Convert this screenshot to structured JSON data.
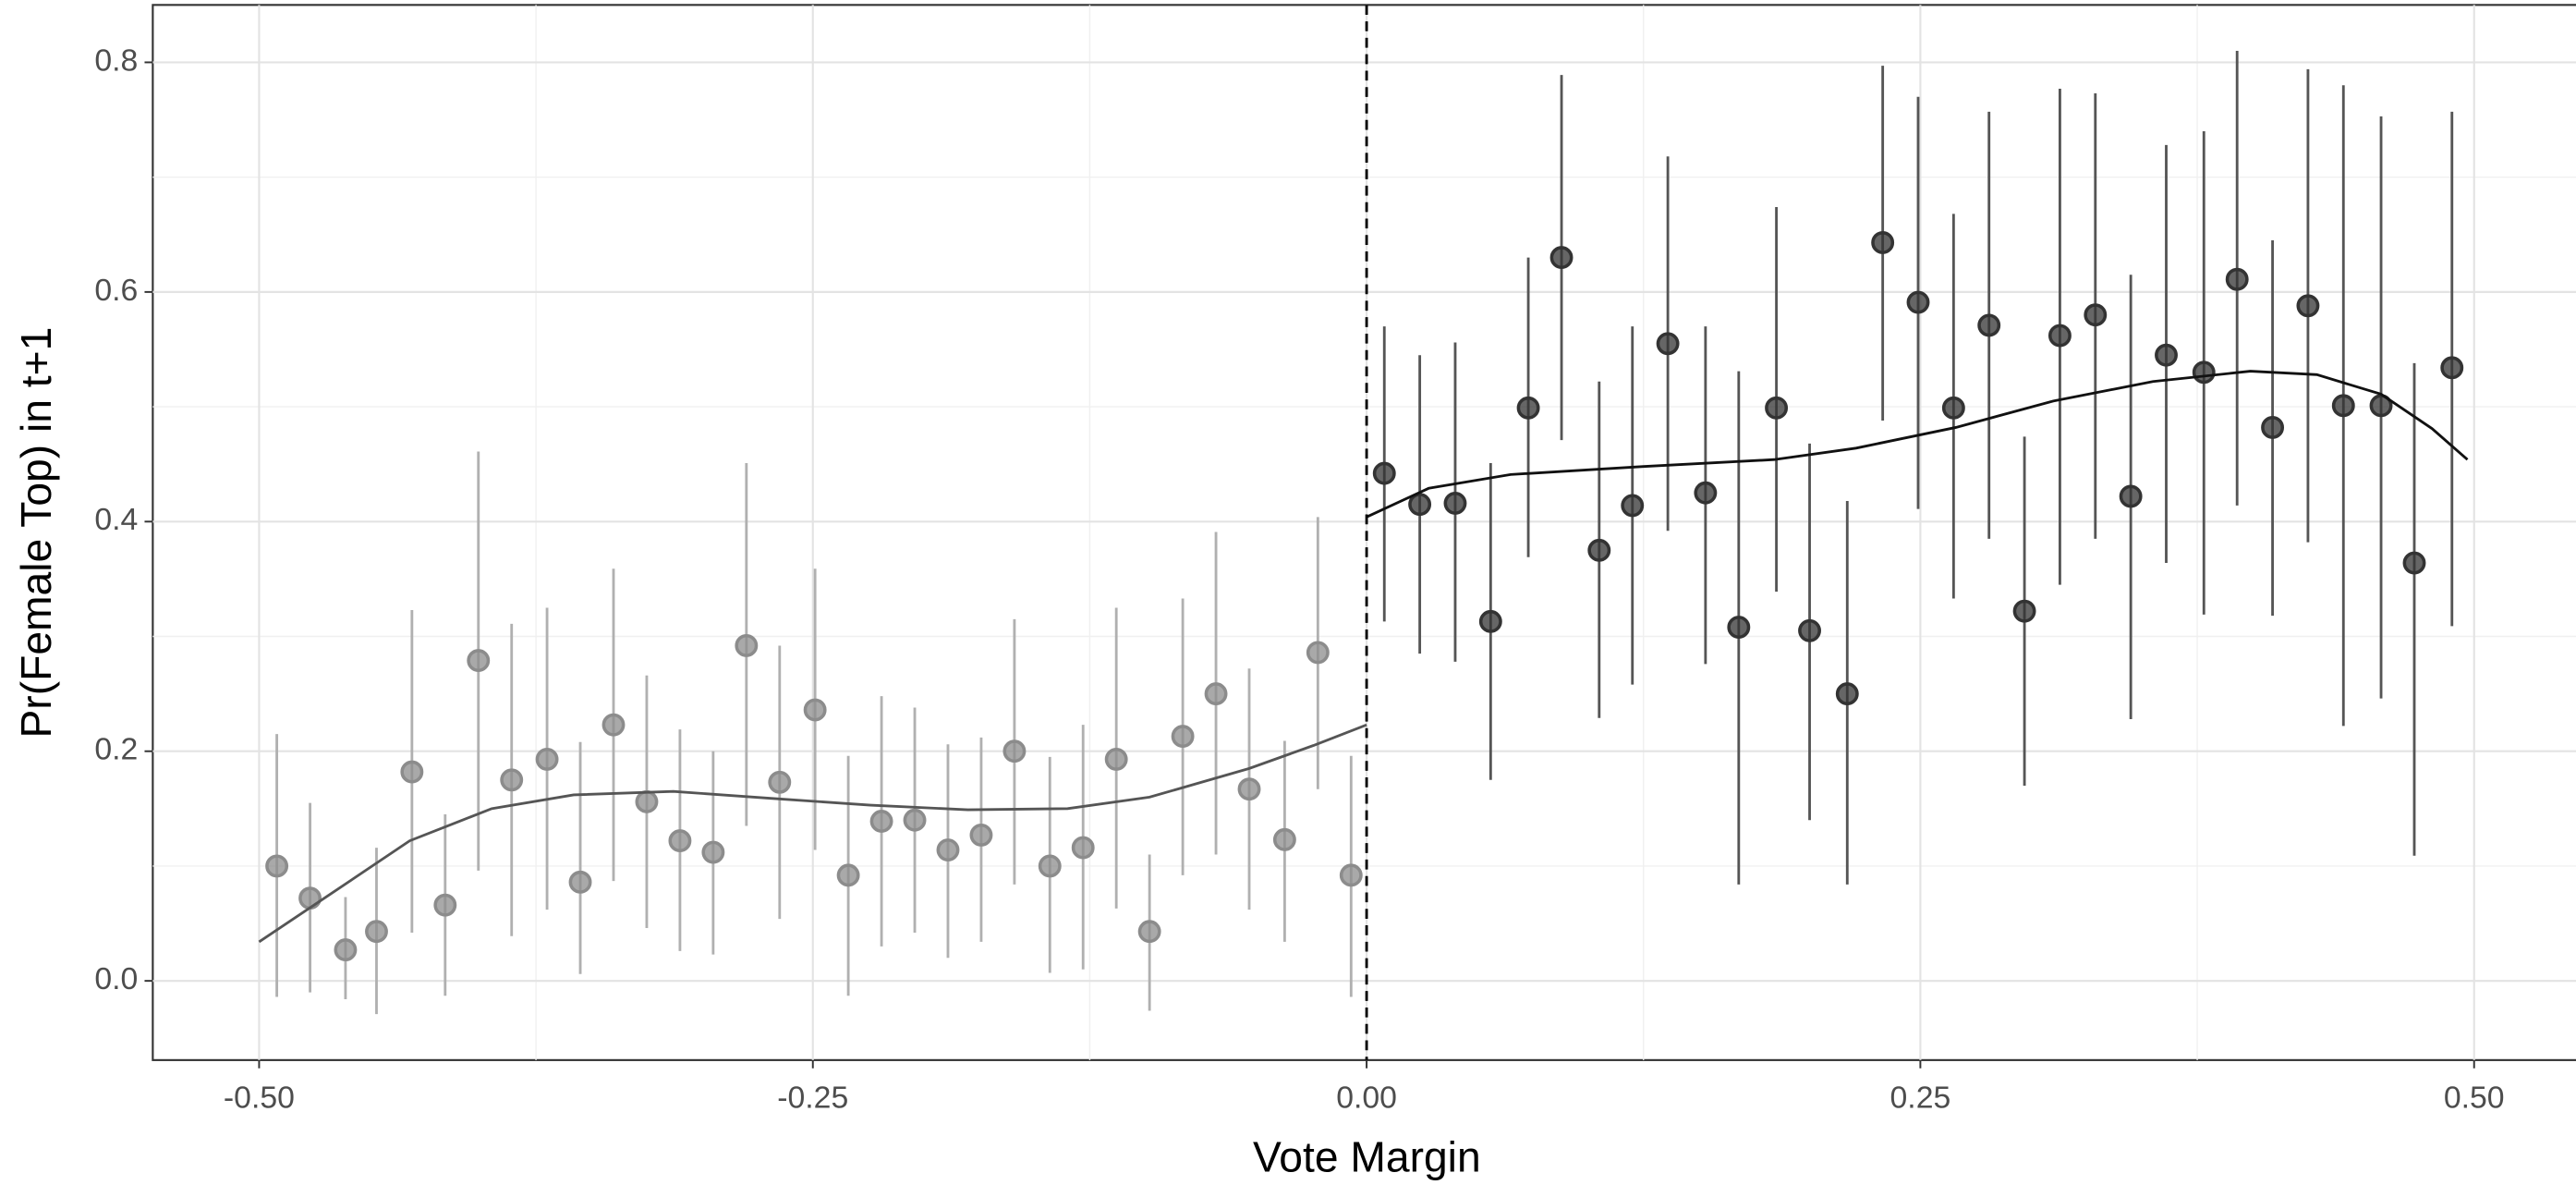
{
  "chart_data": {
    "type": "scatter",
    "x_label": "Vote Margin",
    "y_label": "Pr(Female Top) in t+1",
    "xlim": [
      -0.548,
      0.546
    ],
    "ylim": [
      -0.069,
      0.85
    ],
    "xticks": [
      {
        "value": -0.5,
        "label": "-0.50"
      },
      {
        "value": -0.25,
        "label": "-0.25"
      },
      {
        "value": 0,
        "label": "0.00"
      },
      {
        "value": 0.25,
        "label": "0.25"
      },
      {
        "value": 0.5,
        "label": "0.50"
      }
    ],
    "yticks": [
      {
        "value": 0,
        "label": "0.0"
      },
      0.2,
      0.4,
      0.6,
      0.8
    ],
    "x_minor_grid": [
      -0.375,
      -0.125,
      0.125,
      0.375
    ],
    "y_minor_grid": [
      0.1,
      0.3,
      0.5,
      0.7
    ],
    "grid": true,
    "cutoff": 0,
    "series": [
      {
        "color": "#8c8c8c",
        "errorbar_color": "#b0b0b0",
        "x": [
          -0.492,
          -0.477,
          -0.461,
          -0.447,
          -0.431,
          -0.416,
          -0.401,
          -0.386,
          -0.37,
          -0.355,
          -0.34,
          -0.325,
          -0.31,
          -0.295,
          -0.28,
          -0.265,
          -0.249,
          -0.234,
          -0.219,
          -0.204,
          -0.189,
          -0.174,
          -0.159,
          -0.143,
          -0.128,
          -0.113,
          -0.098,
          -0.083,
          -0.068,
          -0.053,
          -0.037,
          -0.022,
          -0.007
        ],
        "values": [
          0.1,
          0.072,
          0.027,
          0.043,
          0.182,
          0.066,
          0.279,
          0.175,
          0.193,
          0.086,
          0.223,
          0.156,
          0.122,
          0.112,
          0.292,
          0.173,
          0.236,
          0.092,
          0.139,
          0.14,
          0.114,
          0.127,
          0.2,
          0.1,
          0.116,
          0.193,
          0.043,
          0.213,
          0.25,
          0.167,
          0.123,
          0.286,
          0.092
        ],
        "lower": [
          -0.014,
          -0.01,
          -0.016,
          -0.029,
          0.042,
          -0.013,
          0.096,
          0.039,
          0.062,
          0.006,
          0.087,
          0.046,
          0.026,
          0.023,
          0.135,
          0.054,
          0.114,
          -0.013,
          0.03,
          0.042,
          0.02,
          0.034,
          0.084,
          0.007,
          0.01,
          0.063,
          -0.026,
          0.092,
          0.11,
          0.062,
          0.034,
          0.167,
          -0.014
        ],
        "upper": [
          0.215,
          0.155,
          0.073,
          0.116,
          0.323,
          0.145,
          0.461,
          0.311,
          0.325,
          0.208,
          0.359,
          0.266,
          0.219,
          0.2,
          0.451,
          0.292,
          0.359,
          0.196,
          0.248,
          0.238,
          0.206,
          0.212,
          0.315,
          0.195,
          0.223,
          0.325,
          0.11,
          0.333,
          0.391,
          0.272,
          0.209,
          0.404,
          0.196
        ]
      },
      {
        "color": "#333333",
        "errorbar_color": "#555555",
        "x": [
          0.008,
          0.024,
          0.04,
          0.056,
          0.073,
          0.088,
          0.105,
          0.12,
          0.136,
          0.153,
          0.168,
          0.185,
          0.2,
          0.217,
          0.233,
          0.249,
          0.265,
          0.281,
          0.297,
          0.313,
          0.329,
          0.345,
          0.361,
          0.378,
          0.393,
          0.409,
          0.425,
          0.441,
          0.458,
          0.473,
          0.49
        ],
        "values": [
          0.442,
          0.415,
          0.416,
          0.313,
          0.499,
          0.63,
          0.375,
          0.414,
          0.555,
          0.425,
          0.308,
          0.499,
          0.305,
          0.25,
          0.643,
          0.591,
          0.499,
          0.571,
          0.322,
          0.562,
          0.58,
          0.422,
          0.545,
          0.53,
          0.611,
          0.482,
          0.588,
          0.501,
          0.501,
          0.364,
          0.534
        ],
        "lower": [
          0.313,
          0.285,
          0.278,
          0.175,
          0.369,
          0.471,
          0.229,
          0.258,
          0.392,
          0.276,
          0.084,
          0.339,
          0.14,
          0.084,
          0.488,
          0.411,
          0.333,
          0.385,
          0.17,
          0.345,
          0.385,
          0.228,
          0.364,
          0.319,
          0.414,
          0.318,
          0.382,
          0.222,
          0.246,
          0.109,
          0.309
        ],
        "upper": [
          0.57,
          0.545,
          0.556,
          0.451,
          0.63,
          0.789,
          0.522,
          0.57,
          0.718,
          0.57,
          0.531,
          0.674,
          0.468,
          0.418,
          0.797,
          0.77,
          0.668,
          0.757,
          0.474,
          0.777,
          0.773,
          0.615,
          0.728,
          0.74,
          0.81,
          0.645,
          0.794,
          0.78,
          0.753,
          0.538,
          0.757
        ]
      }
    ],
    "fits": [
      {
        "color": "#555555",
        "x": [
          -0.5,
          -0.469,
          -0.432,
          -0.395,
          -0.358,
          -0.313,
          -0.269,
          -0.224,
          -0.18,
          -0.135,
          -0.098,
          -0.053,
          -0.024,
          0
        ],
        "values": [
          0.034,
          0.074,
          0.122,
          0.15,
          0.162,
          0.165,
          0.159,
          0.153,
          0.149,
          0.15,
          0.16,
          0.185,
          0.205,
          0.223
        ]
      },
      {
        "color": "#111111",
        "x": [
          0,
          0.028,
          0.065,
          0.125,
          0.184,
          0.221,
          0.266,
          0.31,
          0.355,
          0.399,
          0.429,
          0.458,
          0.481,
          0.497
        ],
        "values": [
          0.404,
          0.429,
          0.441,
          0.448,
          0.454,
          0.464,
          0.482,
          0.505,
          0.522,
          0.531,
          0.528,
          0.511,
          0.481,
          0.454
        ]
      }
    ]
  }
}
